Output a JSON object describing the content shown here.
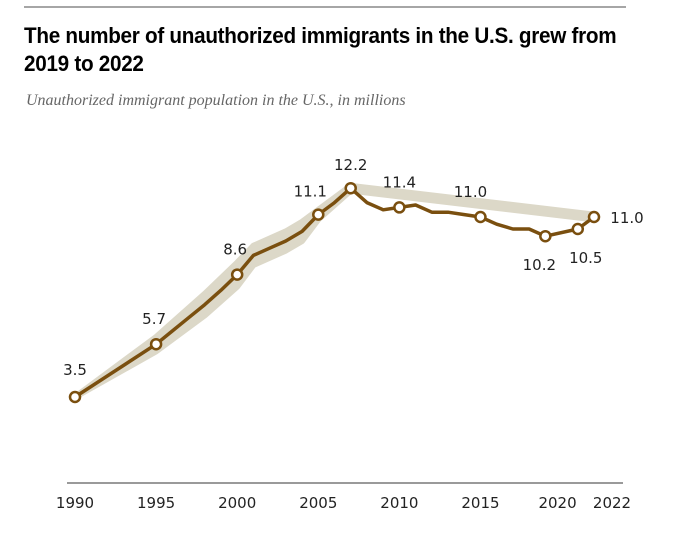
{
  "chart_data": {
    "type": "line",
    "title": "The number of unauthorized immigrants in the U.S. grew from 2019 to 2022",
    "subtitle": "Unauthorized immigrant population in the U.S., in millions",
    "xlabel": "",
    "ylabel": "",
    "xlim": [
      1990,
      2022
    ],
    "ylim": [
      0,
      12.2
    ],
    "grid": false,
    "x_ticks": [
      "1990",
      "1995",
      "2000",
      "2005",
      "2010",
      "2015",
      "2020",
      "2022"
    ],
    "series": [
      {
        "name": "Unauthorized immigrant population",
        "color": "#7a4f0f",
        "band_color": "#dcd8c8",
        "points": [
          {
            "x": 1990,
            "y": 3.5,
            "marker": true,
            "label": "3.5"
          },
          {
            "x": 1995,
            "y": 5.7,
            "marker": true,
            "label": "5.7"
          },
          {
            "x": 1996,
            "y": 6.25
          },
          {
            "x": 1997,
            "y": 6.8
          },
          {
            "x": 1998,
            "y": 7.35
          },
          {
            "x": 1999,
            "y": 7.95
          },
          {
            "x": 2000,
            "y": 8.6,
            "marker": true,
            "label": "8.6"
          },
          {
            "x": 2001,
            "y": 9.4
          },
          {
            "x": 2002,
            "y": 9.7
          },
          {
            "x": 2003,
            "y": 10.0
          },
          {
            "x": 2004,
            "y": 10.4
          },
          {
            "x": 2005,
            "y": 11.1,
            "marker": true,
            "label": "11.1"
          },
          {
            "x": 2006,
            "y": 11.6
          },
          {
            "x": 2007,
            "y": 12.2,
            "marker": true,
            "label": "12.2"
          },
          {
            "x": 2008,
            "y": 11.6
          },
          {
            "x": 2009,
            "y": 11.3
          },
          {
            "x": 2010,
            "y": 11.4,
            "marker": true,
            "label": "11.4"
          },
          {
            "x": 2011,
            "y": 11.5
          },
          {
            "x": 2012,
            "y": 11.2
          },
          {
            "x": 2013,
            "y": 11.2
          },
          {
            "x": 2014,
            "y": 11.1
          },
          {
            "x": 2015,
            "y": 11.0,
            "marker": true,
            "label": "11.0"
          },
          {
            "x": 2016,
            "y": 10.7
          },
          {
            "x": 2017,
            "y": 10.5
          },
          {
            "x": 2018,
            "y": 10.5
          },
          {
            "x": 2019,
            "y": 10.2,
            "marker": true,
            "label": "10.2"
          },
          {
            "x": 2021,
            "y": 10.5,
            "marker": true,
            "label": "10.5"
          },
          {
            "x": 2022,
            "y": 11.0,
            "marker": true,
            "label": "11.0"
          }
        ],
        "band": [
          {
            "x": 1990,
            "low": 3.5,
            "high": 3.5
          },
          {
            "x": 1995,
            "low": 5.4,
            "high": 6.0
          },
          {
            "x": 1998,
            "low": 6.9,
            "high": 7.8
          },
          {
            "x": 2000,
            "low": 8.1,
            "high": 9.1
          },
          {
            "x": 2001,
            "low": 9.0,
            "high": 9.8
          },
          {
            "x": 2003,
            "low": 9.6,
            "high": 10.4
          },
          {
            "x": 2004,
            "low": 10.0,
            "high": 10.8
          },
          {
            "x": 2005,
            "low": 10.9,
            "high": 11.3
          },
          {
            "x": 2007,
            "low": 12.1,
            "high": 12.3
          },
          {
            "x": 2022,
            "low": 10.9,
            "high": 11.1
          }
        ]
      }
    ]
  }
}
